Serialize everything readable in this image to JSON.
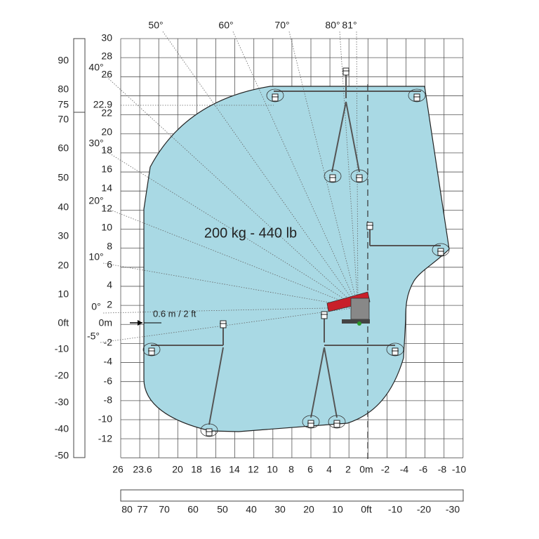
{
  "load_label": "200 kg - 440 lb",
  "offset_label": "0.6 m / 2 ft",
  "angle_labels": [
    "50°",
    "60°",
    "70°",
    "80°",
    "81°",
    "40°",
    "30°",
    "20°",
    "10°",
    "0°",
    "-5°"
  ],
  "height_m_labels": [
    "30",
    "28",
    "26",
    "22.9",
    "22",
    "20",
    "18",
    "16",
    "14",
    "12",
    "10",
    "8",
    "6",
    "4",
    "2",
    "0m",
    "-2",
    "-4",
    "-6",
    "-8",
    "-10",
    "-12"
  ],
  "height_ft_labels": [
    "90",
    "80",
    "75",
    "70",
    "60",
    "50",
    "40",
    "30",
    "20",
    "10",
    "0ft",
    "-10",
    "-20",
    "-30",
    "-40",
    "-50"
  ],
  "reach_m_labels": [
    "26",
    "23.6",
    "20",
    "18",
    "16",
    "14",
    "12",
    "10",
    "8",
    "6",
    "4",
    "2",
    "0m",
    "-2",
    "-4",
    "-6",
    "-8",
    "-10"
  ],
  "reach_ft_labels": [
    "80",
    "77",
    "70",
    "60",
    "50",
    "40",
    "30",
    "20",
    "10",
    "0ft",
    "-10",
    "-20",
    "-30"
  ]
}
